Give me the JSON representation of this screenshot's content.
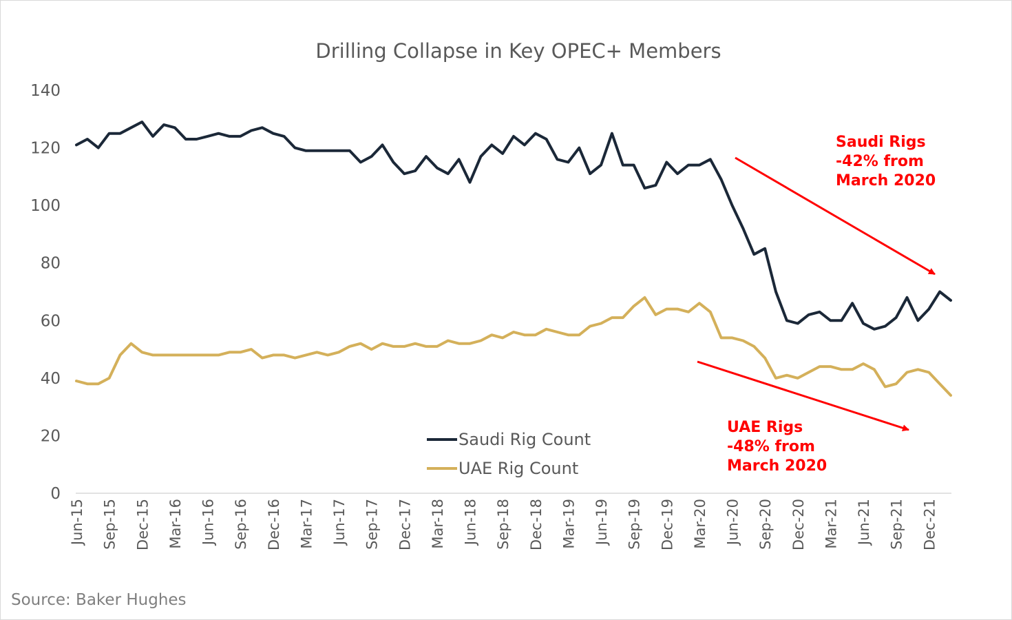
{
  "chart_data": {
    "type": "line",
    "title": "Drilling Collapse in Key OPEC+ Members",
    "xlabel": "",
    "ylabel": "",
    "ylim": [
      0,
      140
    ],
    "yticks": [
      "0",
      "20",
      "40",
      "60",
      "80",
      "100",
      "120",
      "140"
    ],
    "x_tick_labels": [
      "Jun-15",
      "Sep-15",
      "Dec-15",
      "Mar-16",
      "Jun-16",
      "Sep-16",
      "Dec-16",
      "Mar-17",
      "Jun-17",
      "Sep-17",
      "Dec-17",
      "Mar-18",
      "Jun-18",
      "Sep-18",
      "Dec-18",
      "Mar-19",
      "Jun-19",
      "Sep-19",
      "Dec-19",
      "Mar-20",
      "Jun-20",
      "Sep-20",
      "Dec-20",
      "Mar-21",
      "Jun-21",
      "Sep-21",
      "Dec-21"
    ],
    "x_start": "Jun-15",
    "x_end": "Feb-22",
    "frequency": "monthly",
    "grid": false,
    "legend_position": "bottom-center",
    "series": [
      {
        "name": "Saudi Rig Count",
        "color": "#1b2838",
        "values": [
          121,
          123,
          120,
          125,
          125,
          127,
          129,
          124,
          128,
          127,
          123,
          123,
          124,
          125,
          124,
          124,
          126,
          127,
          125,
          124,
          120,
          119,
          119,
          119,
          119,
          119,
          115,
          117,
          121,
          115,
          111,
          112,
          117,
          113,
          111,
          116,
          108,
          117,
          121,
          118,
          124,
          121,
          125,
          123,
          116,
          115,
          120,
          111,
          114,
          125,
          114,
          114,
          106,
          107,
          115,
          111,
          114,
          114,
          116,
          109,
          100,
          92,
          83,
          85,
          70,
          60,
          59,
          62,
          63,
          60,
          60,
          66,
          59,
          57,
          58,
          61,
          68,
          60,
          64,
          70,
          67
        ]
      },
      {
        "name": "UAE Rig Count",
        "color": "#d4b05a",
        "values": [
          39,
          38,
          38,
          40,
          48,
          52,
          49,
          48,
          48,
          48,
          48,
          48,
          48,
          48,
          49,
          49,
          50,
          47,
          48,
          48,
          47,
          48,
          49,
          48,
          49,
          51,
          52,
          50,
          52,
          51,
          51,
          52,
          51,
          51,
          53,
          52,
          52,
          53,
          55,
          54,
          56,
          55,
          55,
          57,
          56,
          55,
          55,
          58,
          59,
          61,
          61,
          65,
          68,
          62,
          64,
          64,
          63,
          66,
          63,
          54,
          54,
          53,
          51,
          47,
          40,
          41,
          40,
          42,
          44,
          44,
          43,
          43,
          45,
          43,
          37,
          38,
          42,
          43,
          42,
          38,
          34
        ]
      }
    ],
    "annotations": [
      {
        "lines": [
          "Saudi Rigs",
          "-42% from",
          "March 2020"
        ],
        "color": "#ff0000"
      },
      {
        "lines": [
          "UAE Rigs",
          "-48% from",
          "March 2020"
        ],
        "color": "#ff0000"
      }
    ]
  },
  "source": "Source: Baker Hughes"
}
